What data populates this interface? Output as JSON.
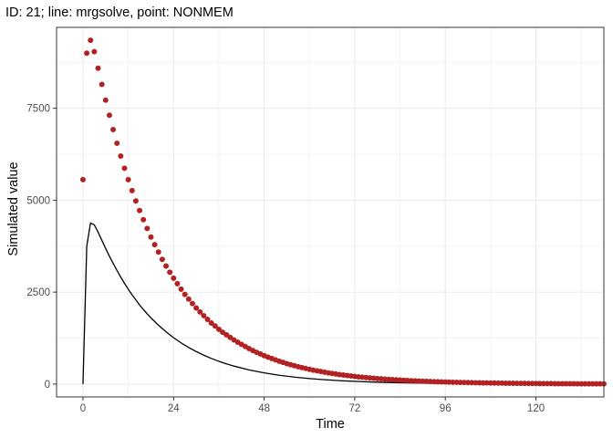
{
  "chart_data": {
    "type": "scatter",
    "title": "ID: 21; line: mrgsolve, point: NONMEM",
    "xlabel": "Time",
    "ylabel": "Simulated value",
    "xlim": [
      -7,
      138
    ],
    "ylim": [
      -350,
      9700
    ],
    "x_ticks": [
      0,
      24,
      48,
      72,
      96,
      120
    ],
    "y_ticks": [
      0,
      2500,
      5000,
      7500
    ],
    "x_tick_labels": [
      "0",
      "24",
      "48",
      "72",
      "96",
      "120"
    ],
    "y_tick_labels": [
      "0",
      "2500",
      "5000",
      "7500"
    ],
    "grid": true,
    "colors": {
      "points": "#b22222",
      "line": "#000000",
      "panel_border": "#333333",
      "grid": "#ebebeb"
    },
    "series": [
      {
        "role": "points",
        "x": [
          0,
          1,
          2,
          3,
          4,
          5,
          6,
          7,
          8,
          9,
          10,
          11,
          12,
          13,
          14,
          15,
          16,
          17,
          18,
          19,
          20,
          21,
          22,
          23,
          24,
          25,
          26,
          27,
          28,
          29,
          30,
          31,
          32,
          33,
          34,
          35,
          36,
          37,
          38,
          39,
          40,
          41,
          42,
          43,
          44,
          45,
          46,
          47,
          48,
          49,
          50,
          51,
          52,
          53,
          54,
          55,
          56,
          57,
          58,
          59,
          60,
          61,
          62,
          63,
          64,
          65,
          66,
          67,
          68,
          69,
          70,
          71,
          72,
          73,
          74,
          75,
          76,
          77,
          78,
          79,
          80,
          81,
          82,
          83,
          84,
          85,
          86,
          87,
          88,
          89,
          90,
          91,
          92,
          93,
          94,
          95,
          96,
          97,
          98,
          99,
          100,
          101,
          102,
          103,
          104,
          105,
          106,
          107,
          108,
          109,
          110,
          111,
          112,
          113,
          114,
          115,
          116,
          117,
          118,
          119,
          120,
          121,
          122,
          123,
          124,
          125,
          126,
          127,
          128,
          129,
          130,
          131,
          132,
          133,
          134,
          135,
          136,
          137,
          138
        ],
        "y": [
          5560,
          9000,
          9350,
          9040,
          8590,
          8150,
          7720,
          7310,
          6920,
          6550,
          6200,
          5870,
          5560,
          5260,
          4980,
          4720,
          4470,
          4230,
          4000,
          3790,
          3590,
          3390,
          3210,
          3040,
          2880,
          2730,
          2580,
          2440,
          2310,
          2190,
          2070,
          1960,
          1860,
          1760,
          1660,
          1580,
          1490,
          1410,
          1340,
          1270,
          1200,
          1140,
          1080,
          1020,
          964,
          912,
          864,
          818,
          774,
          733,
          694,
          657,
          622,
          589,
          557,
          528,
          500,
          473,
          448,
          424,
          401,
          380,
          360,
          341,
          323,
          305,
          289,
          274,
          259,
          245,
          232,
          220,
          208,
          197,
          187,
          177,
          167,
          158,
          150,
          142,
          135,
          127,
          121,
          114,
          108,
          102,
          97,
          92,
          87,
          82,
          78,
          74,
          70,
          66,
          63,
          59,
          56,
          53,
          50,
          48,
          45,
          43,
          40,
          38,
          36,
          34,
          32,
          31,
          29,
          28,
          26,
          25,
          23,
          22,
          21,
          20,
          19,
          18,
          17,
          16,
          15,
          14,
          13,
          13,
          12,
          11,
          11,
          10,
          10,
          9,
          9,
          8,
          8,
          7,
          7,
          6,
          6,
          6,
          5
        ]
      },
      {
        "role": "line",
        "x": [
          0,
          1,
          2,
          3,
          4,
          5,
          6,
          7,
          8,
          9,
          10,
          11,
          12,
          13,
          14,
          15,
          16,
          17,
          18,
          19,
          20,
          22,
          24,
          26,
          28,
          30,
          32,
          34,
          36,
          38,
          40,
          44,
          48,
          52,
          56,
          60,
          64,
          68,
          72,
          76,
          80,
          84,
          88,
          92,
          96,
          100,
          104,
          108,
          112,
          116,
          120,
          124,
          128,
          132,
          136,
          138
        ],
        "y": [
          0,
          3750,
          4380,
          4330,
          4130,
          3910,
          3690,
          3480,
          3280,
          3090,
          2910,
          2740,
          2580,
          2430,
          2290,
          2150,
          2030,
          1910,
          1800,
          1700,
          1600,
          1420,
          1260,
          1120,
          995,
          884,
          785,
          697,
          619,
          550,
          489,
          386,
          304,
          240,
          190,
          150,
          118,
          93,
          74,
          58,
          46,
          36,
          29,
          23,
          18,
          14,
          11,
          9,
          7,
          6,
          4,
          3,
          3,
          2,
          2,
          1
        ]
      }
    ]
  }
}
